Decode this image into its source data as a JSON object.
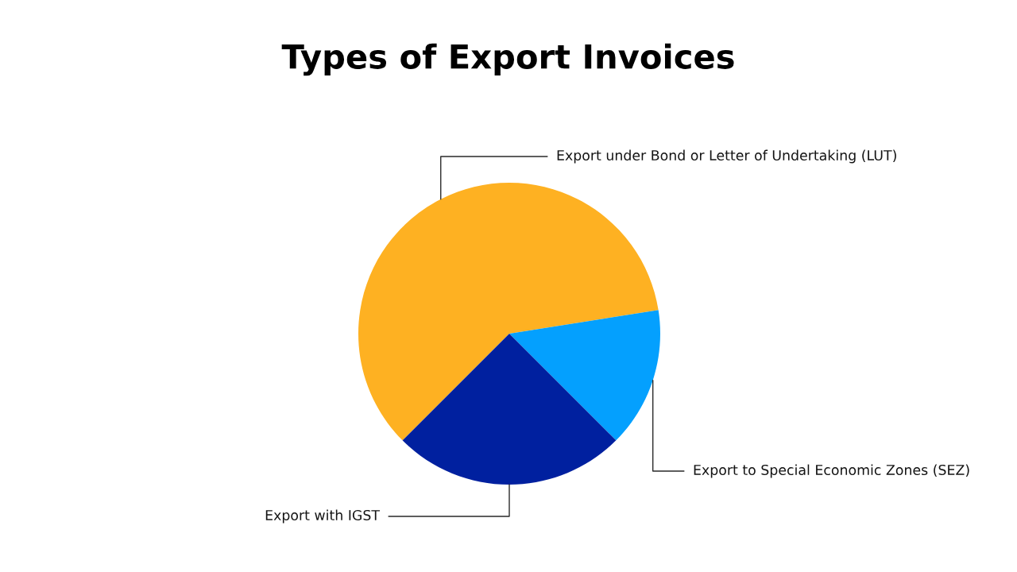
{
  "chart_data": {
    "type": "pie",
    "title": "Types of Export Invoices",
    "categories": [
      "Export under Bond or Letter of Undertaking (LUT)",
      "Export to Special Economic Zones (SEZ)",
      "Export with IGST"
    ],
    "values": [
      60,
      15,
      25
    ],
    "colors": [
      "#feb122",
      "#04a0fe",
      "#00209f"
    ]
  }
}
